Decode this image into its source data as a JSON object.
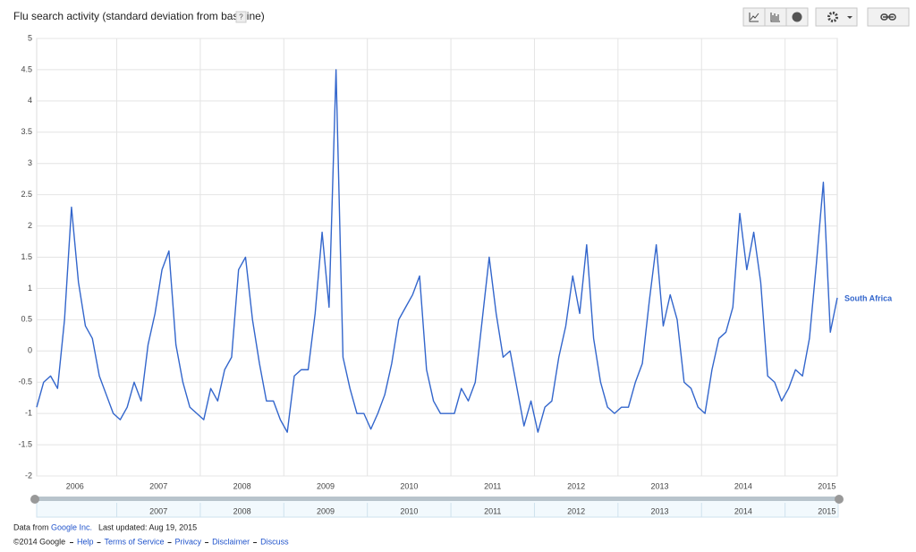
{
  "header": {
    "title": "Flu search activity (standard deviation from baseline)",
    "help": "?"
  },
  "chart_data": {
    "type": "line",
    "categories": [
      null,
      null,
      null,
      null,
      null,
      "2006",
      null,
      null,
      null,
      null,
      null,
      null,
      null,
      null,
      null,
      null,
      null,
      "2007",
      null,
      null,
      null,
      null,
      null,
      null,
      null,
      null,
      null,
      null,
      null,
      "2008",
      null,
      null,
      null,
      null,
      null,
      null,
      null,
      null,
      null,
      null,
      null,
      "2009",
      null,
      null,
      null,
      null,
      null,
      null,
      null,
      null,
      null,
      null,
      null,
      "2010",
      null,
      null,
      null,
      null,
      null,
      null,
      null,
      null,
      null,
      null,
      null,
      "2011",
      null,
      null,
      null,
      null,
      null,
      null,
      null,
      null,
      null,
      null,
      null,
      "2012",
      null,
      null,
      null,
      null,
      null,
      null,
      null,
      null,
      null,
      null,
      null,
      "2013",
      null,
      null,
      null,
      null,
      null,
      null,
      null,
      null,
      null,
      null,
      null,
      "2014",
      null,
      null,
      null,
      null,
      null,
      null,
      null,
      null,
      null,
      null,
      null,
      "2015",
      null,
      null
    ],
    "series": [
      {
        "name": "South Africa",
        "color": "#3366cc",
        "values": [
          -0.9,
          -0.5,
          -0.4,
          -0.6,
          0.5,
          2.3,
          1.1,
          0.4,
          0.2,
          -0.4,
          -0.7,
          -1.0,
          -1.1,
          -0.9,
          -0.5,
          -0.8,
          0.1,
          0.6,
          1.3,
          1.6,
          0.1,
          -0.5,
          -0.9,
          -1.0,
          -1.1,
          -0.6,
          -0.8,
          -0.3,
          -0.1,
          1.3,
          1.5,
          0.5,
          -0.2,
          -0.8,
          -0.8,
          -1.1,
          -1.3,
          -0.4,
          -0.3,
          -0.3,
          0.6,
          1.9,
          0.7,
          4.5,
          -0.1,
          -0.6,
          -1.0,
          -1.0,
          -1.25,
          -1.0,
          -0.7,
          -0.2,
          0.5,
          0.7,
          0.9,
          1.2,
          -0.3,
          -0.8,
          -1.0,
          -1.0,
          -1.0,
          -0.6,
          -0.8,
          -0.5,
          0.5,
          1.5,
          0.6,
          -0.1,
          0.0,
          -0.6,
          -1.2,
          -0.8,
          -1.3,
          -0.9,
          -0.8,
          -0.1,
          0.4,
          1.2,
          0.6,
          1.7,
          0.2,
          -0.5,
          -0.9,
          -1.0,
          -0.9,
          -0.9,
          -0.5,
          -0.2,
          0.8,
          1.7,
          0.4,
          0.9,
          0.5,
          -0.5,
          -0.6,
          -0.9,
          -1.0,
          -0.3,
          0.2,
          0.3,
          0.7,
          2.2,
          1.3,
          1.9,
          1.1,
          -0.4,
          -0.5,
          -0.8,
          -0.6,
          -0.3,
          -0.4,
          0.2,
          1.4,
          2.7,
          0.3,
          0.85
        ]
      }
    ],
    "ylim": [
      -2,
      5
    ],
    "yticks": [
      5,
      4.5,
      4,
      3.5,
      3,
      2.5,
      2,
      1.5,
      1,
      0.5,
      0,
      -0.5,
      -1,
      -1.5,
      -2
    ],
    "grid": true
  },
  "footer": {
    "data_from": "Data from",
    "source": "Google Inc.",
    "last_updated": "Last updated: Aug 19, 2015",
    "copyright": "©2014 Google",
    "links": [
      "Help",
      "Terms of Service",
      "Privacy",
      "Disclaimer",
      "Discuss"
    ]
  }
}
